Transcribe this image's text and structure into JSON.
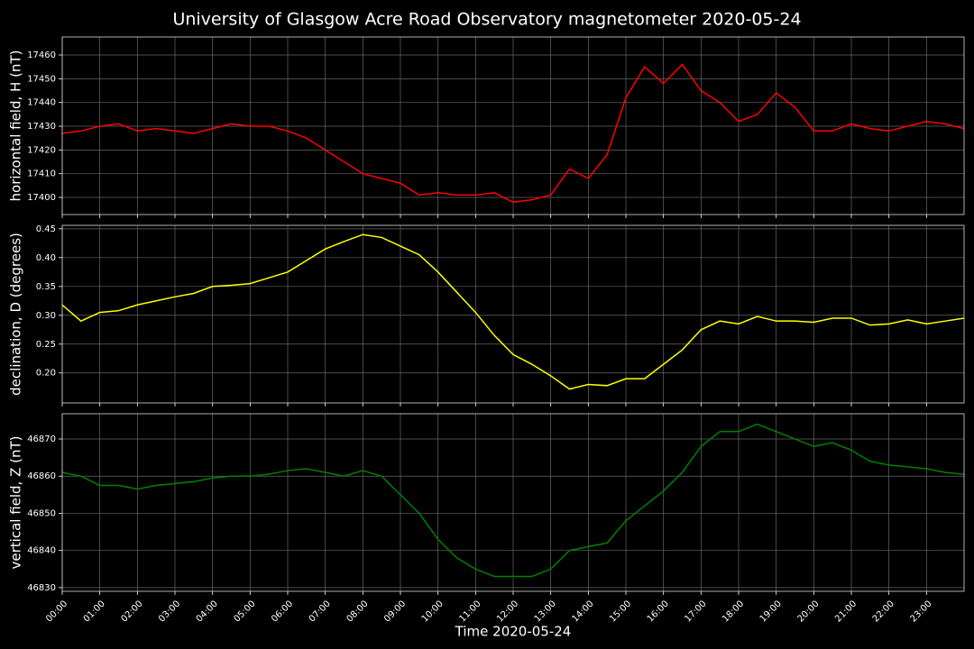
{
  "chart_data": [
    {
      "type": "line",
      "title": "University of Glasgow Acre Road Observatory magnetometer 2020-05-24",
      "y_label": "horizontal field, H (nT)",
      "color": "#ff0000",
      "x": [
        0,
        0.5,
        1,
        1.5,
        2,
        2.5,
        3,
        3.5,
        4,
        4.5,
        5,
        5.5,
        6,
        6.5,
        7,
        7.5,
        8,
        8.5,
        9,
        9.5,
        10,
        10.5,
        11,
        11.5,
        12,
        12.5,
        13,
        13.5,
        14,
        14.5,
        15,
        15.5,
        16,
        16.5,
        17,
        17.5,
        18,
        18.5,
        19,
        19.5,
        20,
        20.5,
        21,
        21.5,
        22,
        22.5,
        23,
        23.5,
        24
      ],
      "values": [
        17427,
        17428,
        17430,
        17431,
        17428,
        17429,
        17428,
        17427,
        17429,
        17431,
        17430,
        17430,
        17428,
        17425,
        17420,
        17415,
        17410,
        17408,
        17406,
        17401,
        17402,
        17401,
        17401,
        17402,
        17398,
        17399,
        17401,
        17412,
        17408,
        17418,
        17442,
        17455,
        17448,
        17456,
        17445,
        17440,
        17432,
        17435,
        17444,
        17438,
        17428,
        17428,
        17431,
        17429,
        17428,
        17430,
        17432,
        17431,
        17429
      ],
      "xlim": [
        0,
        24
      ],
      "ylim": [
        17392.8,
        17467.6
      ],
      "yticks": [
        17400,
        17410,
        17420,
        17430,
        17440,
        17450,
        17460
      ],
      "grid": true
    },
    {
      "type": "line",
      "y_label": "declination, D (degrees)",
      "color": "#ffff00",
      "x": [
        0,
        0.5,
        1,
        1.5,
        2,
        2.5,
        3,
        3.5,
        4,
        4.5,
        5,
        5.5,
        6,
        6.5,
        7,
        7.5,
        8,
        8.5,
        9,
        9.5,
        10,
        10.5,
        11,
        11.5,
        12,
        12.5,
        13,
        13.5,
        14,
        14.5,
        15,
        15.5,
        16,
        16.5,
        17,
        17.5,
        18,
        18.5,
        19,
        19.5,
        20,
        20.5,
        21,
        21.5,
        22,
        22.5,
        23,
        23.5,
        24
      ],
      "values": [
        0.318,
        0.29,
        0.305,
        0.308,
        0.318,
        0.325,
        0.332,
        0.338,
        0.35,
        0.352,
        0.355,
        0.365,
        0.375,
        0.395,
        0.415,
        0.428,
        0.44,
        0.435,
        0.42,
        0.405,
        0.375,
        0.34,
        0.305,
        0.265,
        0.232,
        0.215,
        0.195,
        0.172,
        0.18,
        0.178,
        0.19,
        0.19,
        0.215,
        0.24,
        0.275,
        0.29,
        0.285,
        0.298,
        0.29,
        0.29,
        0.288,
        0.295,
        0.295,
        0.283,
        0.285,
        0.292,
        0.285,
        0.29,
        0.295
      ],
      "xlim": [
        0,
        24
      ],
      "ylim": [
        0.148,
        0.456
      ],
      "yticks": [
        {
          "value": 0.2,
          "label": "0.20"
        },
        0.25,
        {
          "value": 0.3,
          "label": "0.30"
        },
        0.35,
        {
          "value": 0.4,
          "label": "0.40"
        },
        0.45
      ],
      "grid": true
    },
    {
      "type": "line",
      "y_label": "vertical field, Z (nT)",
      "x_label": "Time 2020-05-24",
      "color": "#008000",
      "x": [
        0,
        0.5,
        1,
        1.5,
        2,
        2.5,
        3,
        3.5,
        4,
        4.5,
        5,
        5.5,
        6,
        6.5,
        7,
        7.5,
        8,
        8.5,
        9,
        9.5,
        10,
        10.5,
        11,
        11.5,
        12,
        12.5,
        13,
        13.5,
        14,
        14.5,
        15,
        15.5,
        16,
        16.5,
        17,
        17.5,
        18,
        18.5,
        19,
        19.5,
        20,
        20.5,
        21,
        21.5,
        22,
        22.5,
        23,
        23.5,
        24
      ],
      "values": [
        46861,
        46860,
        46857.5,
        46857.5,
        46856.5,
        46857.5,
        46858,
        46858.5,
        46859.5,
        46860,
        46860,
        46860.5,
        46861.5,
        46862,
        46861,
        46860,
        46861.5,
        46860,
        46855,
        46850,
        46843,
        46838,
        46835,
        46833,
        46833,
        46833,
        46835,
        46840,
        46841,
        46842,
        46848,
        46852,
        46856,
        46861,
        46868,
        46872,
        46872,
        46874,
        46872,
        46870,
        46868,
        46869,
        46867,
        46864,
        46863,
        46862.5,
        46862,
        46861,
        46860.5
      ],
      "xlim": [
        0,
        24
      ],
      "ylim": [
        46829,
        46876.8
      ],
      "yticks": [
        46830,
        46840,
        46850,
        46860,
        46870
      ],
      "xticks": [
        {
          "value": 0,
          "label": "00:00"
        },
        {
          "value": 1,
          "label": "01:00"
        },
        {
          "value": 2,
          "label": "02:00"
        },
        {
          "value": 3,
          "label": "03:00"
        },
        {
          "value": 4,
          "label": "04:00"
        },
        {
          "value": 5,
          "label": "05:00"
        },
        {
          "value": 6,
          "label": "06:00"
        },
        {
          "value": 7,
          "label": "07:00"
        },
        {
          "value": 8,
          "label": "08:00"
        },
        {
          "value": 9,
          "label": "09:00"
        },
        {
          "value": 10,
          "label": "10:00"
        },
        {
          "value": 11,
          "label": "11:00"
        },
        {
          "value": 12,
          "label": "12:00"
        },
        {
          "value": 13,
          "label": "13:00"
        },
        {
          "value": 14,
          "label": "14:00"
        },
        {
          "value": 15,
          "label": "15:00"
        },
        {
          "value": 16,
          "label": "16:00"
        },
        {
          "value": 17,
          "label": "17:00"
        },
        {
          "value": 18,
          "label": "18:00"
        },
        {
          "value": 19,
          "label": "19:00"
        },
        {
          "value": 20,
          "label": "20:00"
        },
        {
          "value": 21,
          "label": "21:00"
        },
        {
          "value": 22,
          "label": "22:00"
        },
        {
          "value": 23,
          "label": "23:00"
        }
      ],
      "grid": true
    }
  ]
}
